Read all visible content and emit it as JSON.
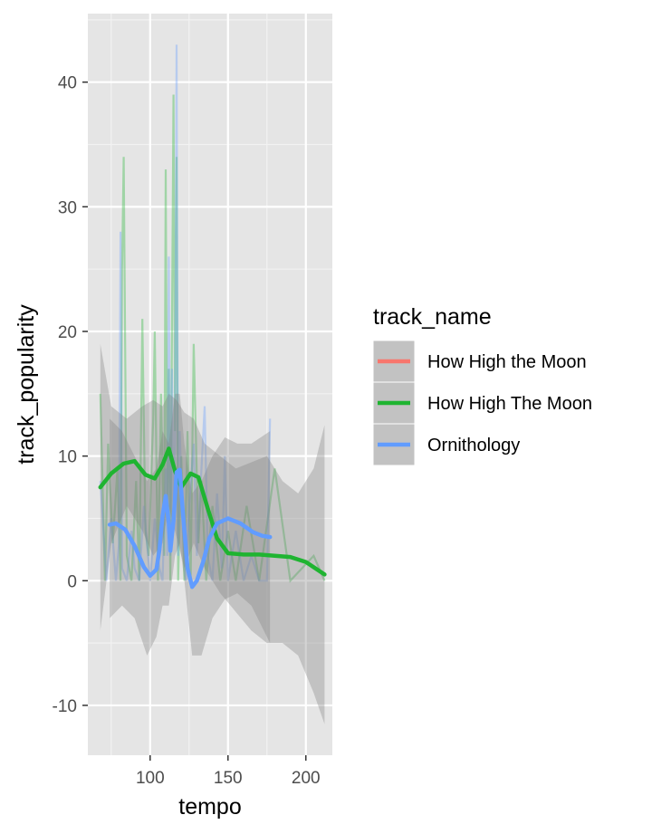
{
  "chart_data": {
    "type": "line",
    "xlabel": "tempo",
    "ylabel": "track_popularity",
    "xlim": [
      60,
      217
    ],
    "ylim": [
      -14,
      45.5
    ],
    "xticks": [
      100,
      150,
      200
    ],
    "yticks": [
      -10,
      0,
      10,
      20,
      30,
      40
    ],
    "xtick_labels": [
      "100",
      "150",
      "200"
    ],
    "ytick_labels": [
      "-10",
      "0",
      "10",
      "20",
      "30",
      "40"
    ],
    "grid": true,
    "background": "#e5e5e5",
    "legend": {
      "title": "track_name",
      "placement": "right"
    },
    "series": [
      {
        "name": "How High the Moon",
        "color": "#f8766d",
        "raw": [],
        "smooth": [],
        "band_upper": [],
        "band_lower": []
      },
      {
        "name": "How High The Moon",
        "color": "#1fb431",
        "raw": [
          [
            68,
            15
          ],
          [
            71,
            0
          ],
          [
            73,
            11
          ],
          [
            76,
            3
          ],
          [
            79,
            9
          ],
          [
            81,
            0
          ],
          [
            82,
            25
          ],
          [
            83,
            34
          ],
          [
            85,
            2
          ],
          [
            88,
            0
          ],
          [
            91,
            8
          ],
          [
            93,
            0
          ],
          [
            95,
            21
          ],
          [
            97,
            4
          ],
          [
            99,
            2
          ],
          [
            102,
            13
          ],
          [
            103,
            20
          ],
          [
            105,
            0
          ],
          [
            107,
            15
          ],
          [
            109,
            2
          ],
          [
            110,
            33
          ],
          [
            111,
            6
          ],
          [
            112,
            17
          ],
          [
            113,
            0
          ],
          [
            115,
            39
          ],
          [
            116,
            12
          ],
          [
            117,
            34
          ],
          [
            118,
            0
          ],
          [
            120,
            10
          ],
          [
            122,
            0
          ],
          [
            124,
            12
          ],
          [
            126,
            0
          ],
          [
            128,
            19
          ],
          [
            131,
            3
          ],
          [
            133,
            8
          ],
          [
            136,
            0
          ],
          [
            140,
            6
          ],
          [
            145,
            0
          ],
          [
            150,
            4
          ],
          [
            155,
            0
          ],
          [
            162,
            6
          ],
          [
            170,
            0
          ],
          [
            180,
            9
          ],
          [
            190,
            0
          ],
          [
            205,
            2
          ],
          [
            212,
            0
          ]
        ],
        "smooth": [
          [
            68,
            7.5
          ],
          [
            75,
            8.6
          ],
          [
            83,
            9.4
          ],
          [
            90,
            9.6
          ],
          [
            97,
            8.5
          ],
          [
            103,
            8.2
          ],
          [
            108,
            9.3
          ],
          [
            112,
            10.6
          ],
          [
            116,
            8.8
          ],
          [
            120,
            7.5
          ],
          [
            126,
            8.6
          ],
          [
            131,
            8.3
          ],
          [
            137,
            5.8
          ],
          [
            143,
            3.4
          ],
          [
            150,
            2.2
          ],
          [
            160,
            2.1
          ],
          [
            170,
            2.1
          ],
          [
            180,
            2.0
          ],
          [
            190,
            1.9
          ],
          [
            200,
            1.5
          ],
          [
            212,
            0.5
          ]
        ],
        "band_upper": [
          [
            68,
            19
          ],
          [
            75,
            14
          ],
          [
            85,
            13
          ],
          [
            95,
            14
          ],
          [
            102,
            14.5
          ],
          [
            108,
            14
          ],
          [
            112,
            15
          ],
          [
            117,
            14.5
          ],
          [
            122,
            13.5
          ],
          [
            128,
            13
          ],
          [
            135,
            11
          ],
          [
            145,
            10
          ],
          [
            155,
            9
          ],
          [
            165,
            9.5
          ],
          [
            175,
            10
          ],
          [
            185,
            8
          ],
          [
            195,
            7
          ],
          [
            205,
            9
          ],
          [
            212,
            12.5
          ]
        ],
        "band_lower": [
          [
            68,
            -4
          ],
          [
            75,
            3
          ],
          [
            85,
            6
          ],
          [
            95,
            4
          ],
          [
            102,
            2
          ],
          [
            108,
            3
          ],
          [
            112,
            6
          ],
          [
            117,
            3.5
          ],
          [
            122,
            1
          ],
          [
            128,
            3
          ],
          [
            135,
            1
          ],
          [
            145,
            -1
          ],
          [
            155,
            -2.5
          ],
          [
            165,
            -4
          ],
          [
            175,
            -5
          ],
          [
            185,
            -5
          ],
          [
            195,
            -6
          ],
          [
            205,
            -9
          ],
          [
            212,
            -11.5
          ]
        ]
      },
      {
        "name": "Ornithology",
        "color": "#619cff",
        "raw": [
          [
            68,
            8
          ],
          [
            72,
            0
          ],
          [
            75,
            5
          ],
          [
            78,
            0
          ],
          [
            80,
            3
          ],
          [
            81,
            28
          ],
          [
            82,
            1
          ],
          [
            85,
            0
          ],
          [
            88,
            4
          ],
          [
            90,
            1
          ],
          [
            93,
            0
          ],
          [
            96,
            6
          ],
          [
            100,
            0
          ],
          [
            103,
            5
          ],
          [
            106,
            1
          ],
          [
            108,
            0
          ],
          [
            110,
            9
          ],
          [
            111,
            2
          ],
          [
            112,
            26
          ],
          [
            113,
            2
          ],
          [
            114,
            17
          ],
          [
            115,
            5
          ],
          [
            116,
            11
          ],
          [
            117,
            43
          ],
          [
            118,
            2
          ],
          [
            119,
            12
          ],
          [
            121,
            4
          ],
          [
            123,
            0
          ],
          [
            125,
            6
          ],
          [
            128,
            11
          ],
          [
            130,
            2
          ],
          [
            133,
            9
          ],
          [
            135,
            14
          ],
          [
            137,
            2
          ],
          [
            140,
            0
          ],
          [
            143,
            7
          ],
          [
            146,
            1
          ],
          [
            148,
            10
          ],
          [
            150,
            0
          ],
          [
            155,
            4
          ],
          [
            160,
            0
          ],
          [
            165,
            2
          ],
          [
            170,
            0
          ],
          [
            175,
            0
          ],
          [
            177,
            13
          ]
        ],
        "smooth": [
          [
            74,
            4.5
          ],
          [
            78,
            4.6
          ],
          [
            84,
            4.1
          ],
          [
            90,
            2.8
          ],
          [
            96,
            1.1
          ],
          [
            100,
            0.4
          ],
          [
            104,
            0.9
          ],
          [
            106,
            2.5
          ],
          [
            108,
            5.2
          ],
          [
            110,
            6.8
          ],
          [
            112,
            4.6
          ],
          [
            113,
            2.4
          ],
          [
            115,
            4.8
          ],
          [
            117,
            8.7
          ],
          [
            119,
            8.9
          ],
          [
            121,
            5.5
          ],
          [
            124,
            1.0
          ],
          [
            127,
            -0.5
          ],
          [
            130,
            0.0
          ],
          [
            134,
            1.5
          ],
          [
            138,
            3.4
          ],
          [
            143,
            4.6
          ],
          [
            150,
            5.0
          ],
          [
            158,
            4.6
          ],
          [
            166,
            3.9
          ],
          [
            172,
            3.6
          ],
          [
            177,
            3.5
          ]
        ],
        "band_upper": [
          [
            74,
            13
          ],
          [
            82,
            12
          ],
          [
            90,
            10
          ],
          [
            98,
            8
          ],
          [
            104,
            9
          ],
          [
            108,
            12
          ],
          [
            112,
            11
          ],
          [
            116,
            15
          ],
          [
            119,
            15
          ],
          [
            122,
            11
          ],
          [
            127,
            7
          ],
          [
            133,
            8
          ],
          [
            140,
            10
          ],
          [
            148,
            11.5
          ],
          [
            156,
            11
          ],
          [
            165,
            11
          ],
          [
            177,
            12
          ]
        ],
        "band_lower": [
          [
            74,
            -3
          ],
          [
            82,
            -2
          ],
          [
            90,
            -3
          ],
          [
            98,
            -6
          ],
          [
            104,
            -4.5
          ],
          [
            108,
            -2
          ],
          [
            112,
            -2
          ],
          [
            116,
            2
          ],
          [
            119,
            3
          ],
          [
            122,
            0
          ],
          [
            127,
            -6
          ],
          [
            133,
            -6
          ],
          [
            140,
            -3
          ],
          [
            148,
            -1.5
          ],
          [
            156,
            -1
          ],
          [
            165,
            -2
          ],
          [
            177,
            -5
          ]
        ]
      }
    ]
  }
}
